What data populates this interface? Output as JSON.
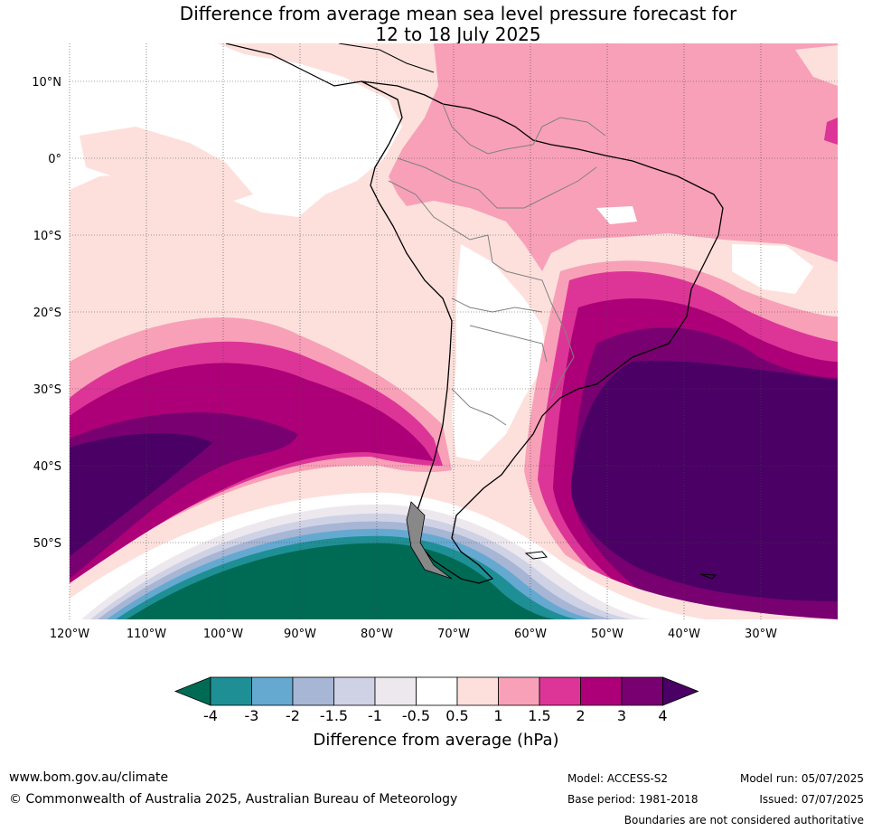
{
  "title_line1": "Difference from average mean sea level pressure forecast for",
  "title_line2": "12 to 18 July 2025",
  "lat_labels": [
    "10°N",
    "0°",
    "10°S",
    "20°S",
    "30°S",
    "40°S",
    "50°S"
  ],
  "lon_labels": [
    "120°W",
    "110°W",
    "100°W",
    "90°W",
    "80°W",
    "70°W",
    "60°W",
    "50°W",
    "40°W",
    "30°W"
  ],
  "colorbar": {
    "ticks": [
      "-4",
      "-3",
      "-2",
      "-1.5",
      "-1",
      "-0.5",
      "0.5",
      "1",
      "1.5",
      "2",
      "3",
      "4"
    ],
    "colors": [
      "#1f8f96",
      "#65a9d1",
      "#a7b6d4",
      "#cfd2e5",
      "#ede8ee",
      "#ffffff",
      "#fde0dc",
      "#f8a0b8",
      "#dd3597",
      "#ad0078",
      "#790070"
    ],
    "under_color": "#006b55",
    "over_color": "#4a0065",
    "label": "Difference from average (hPa)"
  },
  "footer": {
    "website": "www.bom.gov.au/climate",
    "copyright": "© Commonwealth of Australia 2025, Australian Bureau of Meteorology",
    "model": "Model: ACCESS-S2",
    "base_period": "Base period: 1981-2018",
    "model_run": "Model run: 05/07/2025",
    "issued": "Issued: 07/07/2025",
    "disclaimer": "Boundaries are not considered authoritative"
  }
}
